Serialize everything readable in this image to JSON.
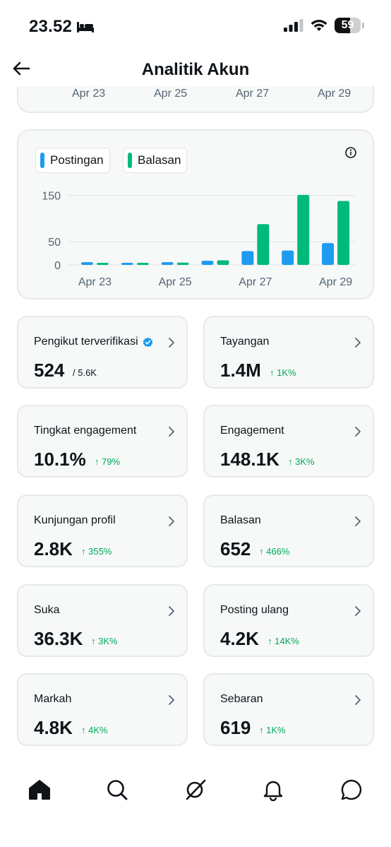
{
  "status_bar": {
    "time": "23.52",
    "battery": "59",
    "battery_level": 0.59,
    "icons": [
      "bed-icon",
      "cellular-signal-icon",
      "wifi-icon",
      "battery-icon"
    ]
  },
  "header": {
    "title": "Analitik Akun",
    "back_icon": "arrow-left-icon"
  },
  "top_chart_axis": [
    "Apr 23",
    "Apr 25",
    "Apr 27",
    "Apr 29"
  ],
  "chart": {
    "legend": [
      {
        "label": "Postingan",
        "color": "#1d9bf0"
      },
      {
        "label": "Balasan",
        "color": "#00ba7c"
      }
    ],
    "info_icon": "info-icon"
  },
  "chart_data": {
    "type": "bar",
    "categories": [
      "Apr 23",
      "Apr 24",
      "Apr 25",
      "Apr 26",
      "Apr 27",
      "Apr 28",
      "Apr 29"
    ],
    "x_tick_labels": [
      "Apr 23",
      "Apr 25",
      "Apr 27",
      "Apr 29"
    ],
    "y_ticks": [
      "150",
      "50",
      "0"
    ],
    "y_tick_values": [
      150,
      50,
      0
    ],
    "ylim": [
      0,
      160
    ],
    "grid": true,
    "series": [
      {
        "name": "Postingan",
        "color": "#1d9bf0",
        "values": [
          6,
          4,
          6,
          9,
          30,
          31,
          47
        ]
      },
      {
        "name": "Balasan",
        "color": "#00ba7c",
        "values": [
          2,
          4,
          5,
          10,
          88,
          151,
          138
        ]
      }
    ]
  },
  "stats": [
    {
      "label": "Pengikut terverifikasi",
      "value": "524",
      "sub": "/ 5.6K",
      "delta": "",
      "verified": true
    },
    {
      "label": "Tayangan",
      "value": "1.4M",
      "sub": "",
      "delta": "↑ 1K%"
    },
    {
      "label": "Tingkat engagement",
      "value": "10.1%",
      "sub": "",
      "delta": "↑ 79%"
    },
    {
      "label": "Engagement",
      "value": "148.1K",
      "sub": "",
      "delta": "↑ 3K%"
    },
    {
      "label": "Kunjungan profil",
      "value": "2.8K",
      "sub": "",
      "delta": "↑ 355%"
    },
    {
      "label": "Balasan",
      "value": "652",
      "sub": "",
      "delta": "↑ 466%"
    },
    {
      "label": "Suka",
      "value": "36.3K",
      "sub": "",
      "delta": "↑ 3K%"
    },
    {
      "label": "Posting ulang",
      "value": "4.2K",
      "sub": "",
      "delta": "↑ 14K%"
    },
    {
      "label": "Markah",
      "value": "4.8K",
      "sub": "",
      "delta": "↑ 4K%"
    },
    {
      "label": "Sebaran",
      "value": "619",
      "sub": "",
      "delta": "↑ 1K%"
    }
  ],
  "bottom_nav": [
    {
      "name": "home",
      "icon": "home-icon",
      "active": true
    },
    {
      "name": "search",
      "icon": "search-icon"
    },
    {
      "name": "grok",
      "icon": "grok-icon"
    },
    {
      "name": "notifications",
      "icon": "bell-icon"
    },
    {
      "name": "messages",
      "icon": "chat-icon"
    }
  ]
}
